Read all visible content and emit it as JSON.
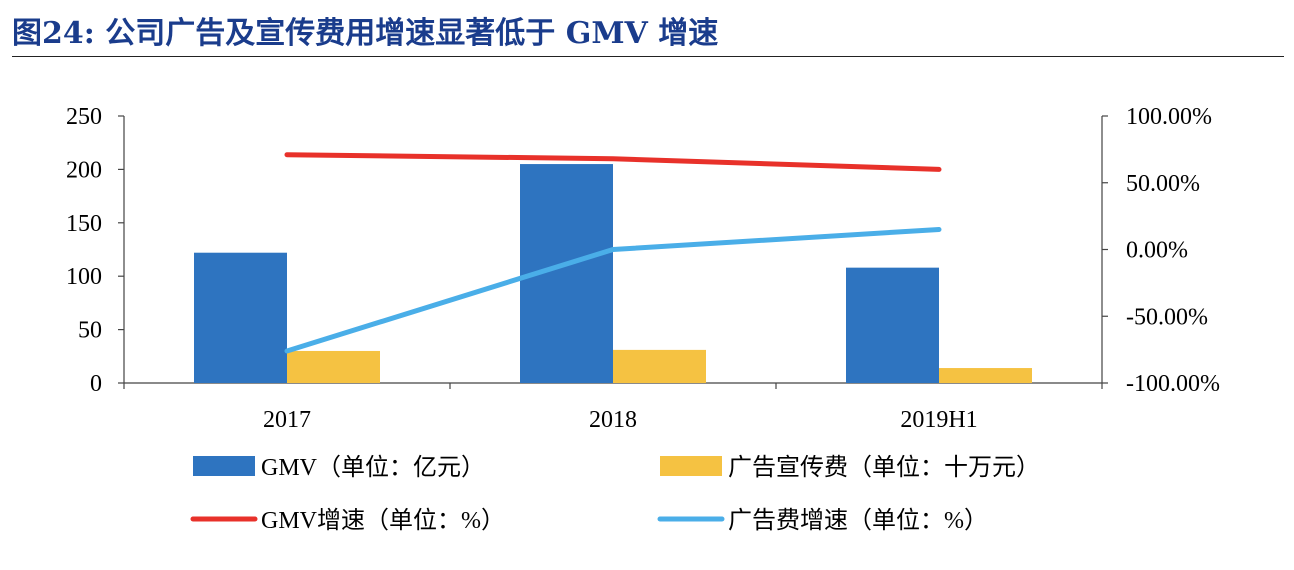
{
  "figure_title": "图24: 公司广告及宣传费用增速显著低于 GMV 增速",
  "colors": {
    "title": "#1a3c8c",
    "gmv": "#2e74c0",
    "ad": "#f5c242",
    "gmv_growth": "#e8312a",
    "ad_growth": "#4aaee8"
  },
  "chart_data": {
    "type": "bar",
    "categories": [
      "2017",
      "2018",
      "2019H1"
    ],
    "y_left": {
      "ylim": [
        0,
        250
      ],
      "ticks": [
        "0",
        "50",
        "100",
        "150",
        "200",
        "250"
      ]
    },
    "y_right": {
      "ylim": [
        -100,
        100
      ],
      "ticks": [
        "-100.00%",
        "-50.00%",
        "0.00%",
        "50.00%",
        "100.00%"
      ]
    },
    "series": [
      {
        "name": "GMV（单位：亿元）",
        "type": "bar",
        "axis": "left",
        "values": [
          122,
          205,
          108
        ]
      },
      {
        "name": "广告宣传费（单位：十万元）",
        "type": "bar",
        "axis": "left",
        "values": [
          30,
          31,
          14
        ]
      },
      {
        "name": "GMV增速（单位：%）",
        "type": "line",
        "axis": "right",
        "values": [
          71,
          68,
          60
        ]
      },
      {
        "name": "广告费增速（单位：%）",
        "type": "line",
        "axis": "right",
        "values": [
          -76,
          0,
          15
        ]
      }
    ],
    "legend_position": "bottom",
    "grid": false
  }
}
